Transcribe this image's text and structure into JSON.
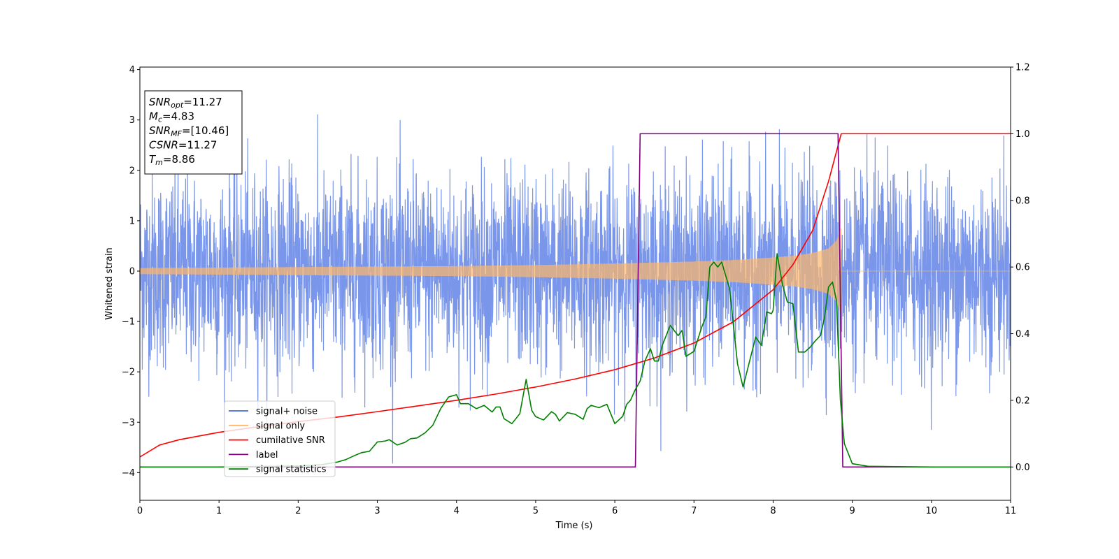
{
  "chart_data": {
    "type": "line",
    "xlabel": "Time (s)",
    "ylabel_left": "Whitened strain",
    "ylabel_right": "",
    "xlim": [
      0,
      11
    ],
    "ylim_left": [
      -4.55,
      4.05
    ],
    "ylim_right": [
      -0.1,
      1.2
    ],
    "x_ticks": [
      "0",
      "1",
      "2",
      "3",
      "4",
      "5",
      "6",
      "7",
      "8",
      "9",
      "10",
      "11"
    ],
    "y_left_ticks": [
      "−4",
      "−3",
      "−2",
      "−1",
      "0",
      "1",
      "2",
      "3",
      "4"
    ],
    "y_right_ticks": [
      "0.0",
      "0.2",
      "0.4",
      "0.6",
      "0.8",
      "1.0",
      "1.2"
    ],
    "grid": false,
    "legend_placement": "lower-left",
    "legend": [
      {
        "label": "signal+ noise",
        "color": "#4169e1"
      },
      {
        "label": "signal only",
        "color": "#ffb66a"
      },
      {
        "label": "cumilative SNR",
        "color": "#ff0000"
      },
      {
        "label": "label",
        "color": "#800080"
      },
      {
        "label": "signal statistics",
        "color": "#008000"
      }
    ],
    "annotation": {
      "lines": [
        {
          "base": "SNR",
          "sub": "opt",
          "value": "=11.27"
        },
        {
          "base": "M",
          "sub": "c",
          "value": "=4.83"
        },
        {
          "base": "SNR",
          "sub": "MF",
          "value": "=[10.46]"
        },
        {
          "base": "CSNR",
          "sub": "",
          "value": "=11.27"
        },
        {
          "base": "T",
          "sub": "m",
          "value": "=8.86"
        }
      ]
    },
    "series": [
      {
        "name": "signal+ noise",
        "axis": "left",
        "color": "#4169e1",
        "style": "noise",
        "x_range": [
          0,
          11
        ],
        "typical_amplitude": 2.0,
        "peak_range": [
          -4.15,
          3.65
        ]
      },
      {
        "name": "signal only",
        "axis": "left",
        "color": "#ffb66a",
        "style": "chirp",
        "x_range": [
          0,
          8.86
        ],
        "envelope": {
          "x": [
            0,
            1,
            2,
            3,
            4,
            5,
            6,
            7,
            7.5,
            8,
            8.3,
            8.5,
            8.7,
            8.8,
            8.86
          ],
          "amp": [
            0.06,
            0.07,
            0.08,
            0.09,
            0.1,
            0.12,
            0.15,
            0.19,
            0.22,
            0.27,
            0.31,
            0.36,
            0.45,
            0.6,
            0.85
          ]
        }
      },
      {
        "name": "cumilative SNR",
        "axis": "right",
        "color": "#ff0000",
        "x": [
          0,
          0.25,
          0.5,
          1,
          1.5,
          2,
          2.5,
          3,
          3.5,
          4,
          4.5,
          5,
          5.5,
          6,
          6.5,
          7,
          7.5,
          8,
          8.25,
          8.5,
          8.7,
          8.86,
          11
        ],
        "y": [
          0.03,
          0.066,
          0.082,
          0.104,
          0.121,
          0.136,
          0.15,
          0.166,
          0.183,
          0.2,
          0.219,
          0.24,
          0.264,
          0.292,
          0.327,
          0.372,
          0.436,
          0.532,
          0.607,
          0.71,
          0.857,
          1.0,
          1.0
        ]
      },
      {
        "name": "label",
        "axis": "right",
        "color": "#800080",
        "x": [
          0,
          6.26,
          6.32,
          8.82,
          8.88,
          11
        ],
        "y": [
          0,
          0,
          1.0,
          1.0,
          0,
          0
        ]
      },
      {
        "name": "signal statistics",
        "axis": "right",
        "color": "#008000",
        "x": [
          0,
          1,
          2,
          2.3,
          2.5,
          2.6,
          2.7,
          2.8,
          2.9,
          3.0,
          3.1,
          3.15,
          3.25,
          3.35,
          3.42,
          3.5,
          3.6,
          3.7,
          3.8,
          3.9,
          4.0,
          4.05,
          4.15,
          4.25,
          4.35,
          4.45,
          4.5,
          4.55,
          4.6,
          4.7,
          4.8,
          4.88,
          4.95,
          5.0,
          5.1,
          5.2,
          5.25,
          5.3,
          5.4,
          5.5,
          5.6,
          5.65,
          5.7,
          5.8,
          5.9,
          6.0,
          6.1,
          6.15,
          6.2,
          6.25,
          6.32,
          6.38,
          6.45,
          6.5,
          6.55,
          6.6,
          6.7,
          6.8,
          6.85,
          6.9,
          7.0,
          7.1,
          7.15,
          7.2,
          7.25,
          7.3,
          7.35,
          7.45,
          7.55,
          7.62,
          7.7,
          7.78,
          7.85,
          7.92,
          7.98,
          8.0,
          8.05,
          8.12,
          8.18,
          8.25,
          8.32,
          8.4,
          8.47,
          8.52,
          8.6,
          8.65,
          8.7,
          8.75,
          8.8,
          8.85,
          8.9,
          9.0,
          9.2,
          10,
          11
        ],
        "y": [
          0.0,
          0.0,
          0.003,
          0.007,
          0.015,
          0.022,
          0.033,
          0.043,
          0.047,
          0.075,
          0.078,
          0.082,
          0.066,
          0.074,
          0.085,
          0.087,
          0.102,
          0.125,
          0.175,
          0.21,
          0.217,
          0.19,
          0.19,
          0.175,
          0.185,
          0.165,
          0.18,
          0.18,
          0.145,
          0.13,
          0.16,
          0.263,
          0.17,
          0.151,
          0.141,
          0.166,
          0.158,
          0.138,
          0.163,
          0.158,
          0.143,
          0.175,
          0.185,
          0.178,
          0.188,
          0.13,
          0.152,
          0.188,
          0.201,
          0.228,
          0.258,
          0.318,
          0.355,
          0.318,
          0.318,
          0.365,
          0.425,
          0.394,
          0.41,
          0.332,
          0.347,
          0.421,
          0.45,
          0.6,
          0.615,
          0.6,
          0.615,
          0.535,
          0.31,
          0.24,
          0.315,
          0.39,
          0.365,
          0.465,
          0.46,
          0.47,
          0.64,
          0.545,
          0.495,
          0.49,
          0.345,
          0.345,
          0.36,
          0.375,
          0.395,
          0.45,
          0.54,
          0.555,
          0.5,
          0.2,
          0.07,
          0.01,
          0.002,
          0.0,
          0.0
        ]
      }
    ]
  }
}
